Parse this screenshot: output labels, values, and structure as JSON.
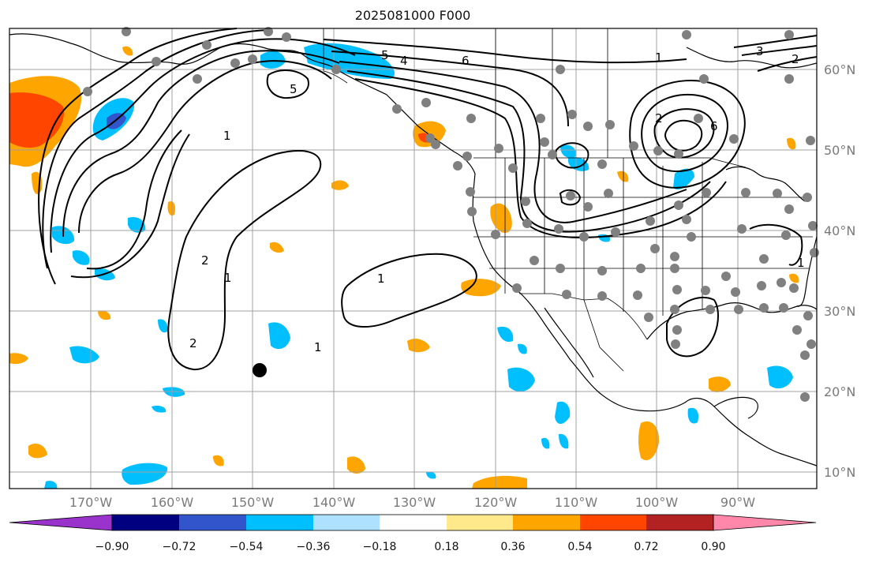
{
  "title": "2025081000 F000",
  "colors": {
    "ocean": "#ffffff",
    "grid": "#a0a0a0",
    "coast": "#000000",
    "contour": "#000000",
    "station": "#808080",
    "marker": "#000000"
  },
  "lon_labels": [
    "170°W",
    "160°W",
    "150°W",
    "140°W",
    "130°W",
    "120°W",
    "110°W",
    "100°W",
    "90°W"
  ],
  "lat_labels": [
    "60°N",
    "50°N",
    "40°N",
    "30°N",
    "20°N",
    "10°N"
  ],
  "colorbar": {
    "colors": [
      "#9933cc",
      "#000080",
      "#3355cc",
      "#00bfff",
      "#aee0ff",
      "#ffffff",
      "#ffe98a",
      "#ffa500",
      "#ff4500",
      "#b22222",
      "#ff88aa"
    ],
    "tick_labels": [
      "−0.90",
      "−0.72",
      "−0.54",
      "−0.36",
      "−0.18",
      "0.18",
      "0.36",
      "0.54",
      "0.72",
      "0.90"
    ]
  },
  "contour_labels": [
    "1",
    "1",
    "1",
    "1",
    "1",
    "2",
    "2",
    "2",
    "4",
    "5",
    "5",
    "6",
    "6",
    "3",
    "2",
    "1"
  ]
}
